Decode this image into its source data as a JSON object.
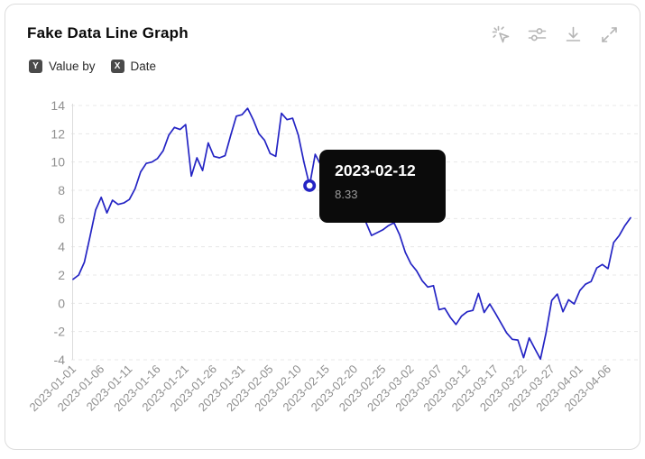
{
  "card": {
    "title": "Fake Data Line Graph",
    "legend": {
      "y_badge": "Y",
      "y_label": "Value by",
      "x_badge": "X",
      "x_label": "Date"
    },
    "toolbar_icons": [
      "magic-cursor-icon",
      "sliders-icon",
      "download-icon",
      "expand-icon"
    ]
  },
  "tooltip": {
    "date": "2023-02-12",
    "value": "8.33"
  },
  "colors": {
    "line": "#2424c4",
    "grid": "#e8e8e8",
    "axis": "#dcdcdc",
    "tick_text": "#8f8f8f",
    "tooltip_bg": "#0b0b0b",
    "tooltip_value_text": "#9b9b9b",
    "icon": "#b5b5b5",
    "badge_bg": "#4a4a4a"
  },
  "chart_data": {
    "type": "line",
    "title": "Fake Data Line Graph",
    "xlabel": "Date",
    "ylabel": "Value",
    "x_start_date": "2023-01-01",
    "x_interval_days": 1,
    "values": [
      1.7,
      2.0,
      2.9,
      4.7,
      6.6,
      7.5,
      6.4,
      7.3,
      7.0,
      7.1,
      7.35,
      8.1,
      9.3,
      9.9,
      10.0,
      10.25,
      10.8,
      11.9,
      12.45,
      12.3,
      12.65,
      9.0,
      10.3,
      9.4,
      11.35,
      10.4,
      10.3,
      10.45,
      11.9,
      13.25,
      13.35,
      13.8,
      13.0,
      12.0,
      11.55,
      10.6,
      10.4,
      13.45,
      13.0,
      13.1,
      11.9,
      10.0,
      8.33,
      10.55,
      9.8,
      10.6,
      9.9,
      10.3,
      9.2,
      8.4,
      7.4,
      6.2,
      5.74,
      4.8,
      5.0,
      5.2,
      5.5,
      5.7,
      4.85,
      3.6,
      2.8,
      2.3,
      1.6,
      1.15,
      1.25,
      -0.45,
      -0.35,
      -1.0,
      -1.5,
      -0.9,
      -0.6,
      -0.5,
      0.7,
      -0.65,
      -0.05,
      -0.7,
      -1.4,
      -2.1,
      -2.55,
      -2.6,
      -3.85,
      -2.45,
      -3.2,
      -3.95,
      -2.1,
      0.2,
      0.65,
      -0.6,
      0.25,
      -0.05,
      0.9,
      1.35,
      1.55,
      2.5,
      2.75,
      2.45,
      4.3,
      4.8,
      5.5,
      6.05
    ],
    "y_ticks": [
      14,
      12,
      10,
      8,
      6,
      4,
      2,
      0,
      -2,
      -4
    ],
    "ylim": [
      -4,
      14
    ],
    "x_tick_every": 5,
    "x_tick_labels": [
      "2023-01-01",
      "2023-01-06",
      "2023-01-11",
      "2023-01-16",
      "2023-01-21",
      "2023-01-26",
      "2023-01-31",
      "2023-02-05",
      "2023-02-10",
      "2023-02-15",
      "2023-02-20",
      "2023-02-25",
      "2023-03-02",
      "2023-03-07",
      "2023-03-12",
      "2023-03-17",
      "2023-03-22",
      "2023-03-27",
      "2023-04-01",
      "2023-04-06"
    ],
    "grid": "horizontal-dashed",
    "legend_position": "none",
    "highlight": {
      "index": 42,
      "date": "2023-02-12",
      "value": 8.33
    }
  }
}
